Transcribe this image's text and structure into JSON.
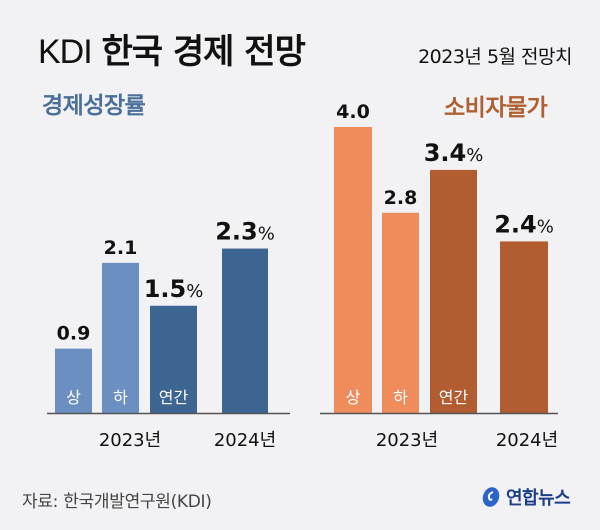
{
  "header": {
    "title_prefix": "KDI",
    "title_main": "한국 경제 전망",
    "subtitle": "2023년 5월 전망치"
  },
  "footer": {
    "source": "자료: 한국개발연구원(KDI)",
    "logo_text": "연합뉴스"
  },
  "colors": {
    "gdp_half": "#6b8fc0",
    "gdp_annual": "#3d6591",
    "cpi_half": "#ef8c5c",
    "cpi_annual": "#b25d31",
    "gdp_label": "#4a6f99",
    "cpi_label": "#b06030"
  },
  "chart_data": [
    {
      "type": "bar",
      "title": "경제성장률",
      "unit": "%",
      "categories": [
        "상",
        "하",
        "연간",
        ""
      ],
      "groups": [
        "2023년",
        "2023년",
        "2023년",
        "2024년"
      ],
      "group_labels": [
        "2023년",
        "2024년"
      ],
      "values": [
        0.9,
        2.1,
        1.5,
        2.3
      ],
      "value_labels": [
        "0.9",
        "2.1",
        "1.5",
        "2.3"
      ],
      "emphasis": [
        false,
        false,
        true,
        true
      ],
      "ylim": [
        0,
        4.2
      ]
    },
    {
      "type": "bar",
      "title": "소비자물가",
      "unit": "%",
      "categories": [
        "상",
        "하",
        "연간",
        ""
      ],
      "groups": [
        "2023년",
        "2023년",
        "2023년",
        "2024년"
      ],
      "group_labels": [
        "2023년",
        "2024년"
      ],
      "values": [
        4.0,
        2.8,
        3.4,
        2.4
      ],
      "value_labels": [
        "4.0",
        "2.8",
        "3.4",
        "2.4"
      ],
      "emphasis": [
        false,
        false,
        true,
        true
      ],
      "ylim": [
        0,
        4.2
      ]
    }
  ]
}
